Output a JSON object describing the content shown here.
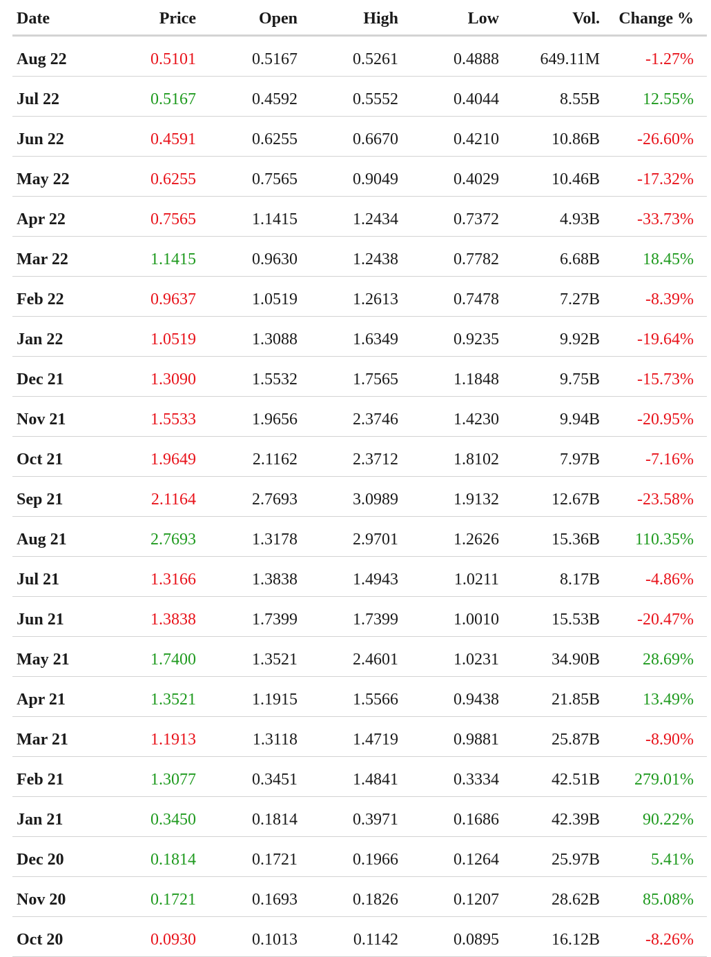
{
  "header": {
    "date": "Date",
    "price": "Price",
    "open": "Open",
    "high": "High",
    "low": "Low",
    "vol": "Vol.",
    "change": "Change %"
  },
  "colors": {
    "up": "#1f9a1f",
    "down": "#e8131b"
  },
  "rows": [
    {
      "date": "Aug 22",
      "price": "0.5101",
      "open": "0.5167",
      "high": "0.5261",
      "low": "0.4888",
      "vol": "649.11M",
      "change": "-1.27%",
      "dir": "down"
    },
    {
      "date": "Jul 22",
      "price": "0.5167",
      "open": "0.4592",
      "high": "0.5552",
      "low": "0.4044",
      "vol": "8.55B",
      "change": "12.55%",
      "dir": "up"
    },
    {
      "date": "Jun 22",
      "price": "0.4591",
      "open": "0.6255",
      "high": "0.6670",
      "low": "0.4210",
      "vol": "10.86B",
      "change": "-26.60%",
      "dir": "down"
    },
    {
      "date": "May 22",
      "price": "0.6255",
      "open": "0.7565",
      "high": "0.9049",
      "low": "0.4029",
      "vol": "10.46B",
      "change": "-17.32%",
      "dir": "down"
    },
    {
      "date": "Apr 22",
      "price": "0.7565",
      "open": "1.1415",
      "high": "1.2434",
      "low": "0.7372",
      "vol": "4.93B",
      "change": "-33.73%",
      "dir": "down"
    },
    {
      "date": "Mar 22",
      "price": "1.1415",
      "open": "0.9630",
      "high": "1.2438",
      "low": "0.7782",
      "vol": "6.68B",
      "change": "18.45%",
      "dir": "up"
    },
    {
      "date": "Feb 22",
      "price": "0.9637",
      "open": "1.0519",
      "high": "1.2613",
      "low": "0.7478",
      "vol": "7.27B",
      "change": "-8.39%",
      "dir": "down"
    },
    {
      "date": "Jan 22",
      "price": "1.0519",
      "open": "1.3088",
      "high": "1.6349",
      "low": "0.9235",
      "vol": "9.92B",
      "change": "-19.64%",
      "dir": "down"
    },
    {
      "date": "Dec 21",
      "price": "1.3090",
      "open": "1.5532",
      "high": "1.7565",
      "low": "1.1848",
      "vol": "9.75B",
      "change": "-15.73%",
      "dir": "down"
    },
    {
      "date": "Nov 21",
      "price": "1.5533",
      "open": "1.9656",
      "high": "2.3746",
      "low": "1.4230",
      "vol": "9.94B",
      "change": "-20.95%",
      "dir": "down"
    },
    {
      "date": "Oct 21",
      "price": "1.9649",
      "open": "2.1162",
      "high": "2.3712",
      "low": "1.8102",
      "vol": "7.97B",
      "change": "-7.16%",
      "dir": "down"
    },
    {
      "date": "Sep 21",
      "price": "2.1164",
      "open": "2.7693",
      "high": "3.0989",
      "low": "1.9132",
      "vol": "12.67B",
      "change": "-23.58%",
      "dir": "down"
    },
    {
      "date": "Aug 21",
      "price": "2.7693",
      "open": "1.3178",
      "high": "2.9701",
      "low": "1.2626",
      "vol": "15.36B",
      "change": "110.35%",
      "dir": "up"
    },
    {
      "date": "Jul 21",
      "price": "1.3166",
      "open": "1.3838",
      "high": "1.4943",
      "low": "1.0211",
      "vol": "8.17B",
      "change": "-4.86%",
      "dir": "down"
    },
    {
      "date": "Jun 21",
      "price": "1.3838",
      "open": "1.7399",
      "high": "1.7399",
      "low": "1.0010",
      "vol": "15.53B",
      "change": "-20.47%",
      "dir": "down"
    },
    {
      "date": "May 21",
      "price": "1.7400",
      "open": "1.3521",
      "high": "2.4601",
      "low": "1.0231",
      "vol": "34.90B",
      "change": "28.69%",
      "dir": "up"
    },
    {
      "date": "Apr 21",
      "price": "1.3521",
      "open": "1.1915",
      "high": "1.5566",
      "low": "0.9438",
      "vol": "21.85B",
      "change": "13.49%",
      "dir": "up"
    },
    {
      "date": "Mar 21",
      "price": "1.1913",
      "open": "1.3118",
      "high": "1.4719",
      "low": "0.9881",
      "vol": "25.87B",
      "change": "-8.90%",
      "dir": "down"
    },
    {
      "date": "Feb 21",
      "price": "1.3077",
      "open": "0.3451",
      "high": "1.4841",
      "low": "0.3334",
      "vol": "42.51B",
      "change": "279.01%",
      "dir": "up"
    },
    {
      "date": "Jan 21",
      "price": "0.3450",
      "open": "0.1814",
      "high": "0.3971",
      "low": "0.1686",
      "vol": "42.39B",
      "change": "90.22%",
      "dir": "up"
    },
    {
      "date": "Dec 20",
      "price": "0.1814",
      "open": "0.1721",
      "high": "0.1966",
      "low": "0.1264",
      "vol": "25.97B",
      "change": "5.41%",
      "dir": "up"
    },
    {
      "date": "Nov 20",
      "price": "0.1721",
      "open": "0.1693",
      "high": "0.1826",
      "low": "0.1207",
      "vol": "28.62B",
      "change": "85.08%",
      "dir": "up"
    },
    {
      "date": "Oct 20",
      "price": "0.0930",
      "open": "0.1013",
      "high": "0.1142",
      "low": "0.0895",
      "vol": "16.12B",
      "change": "-8.26%",
      "dir": "down"
    }
  ]
}
